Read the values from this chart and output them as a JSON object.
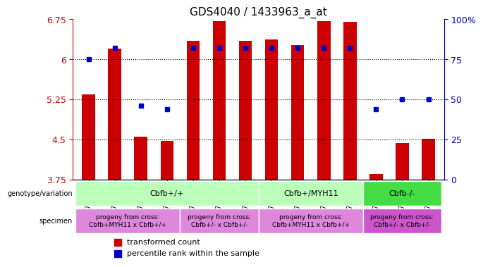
{
  "title": "GDS4040 / 1433963_a_at",
  "samples": [
    "GSM475934",
    "GSM475935",
    "GSM475936",
    "GSM475937",
    "GSM475941",
    "GSM475942",
    "GSM475943",
    "GSM475930",
    "GSM475931",
    "GSM475932",
    "GSM475933",
    "GSM475938",
    "GSM475939",
    "GSM475940"
  ],
  "bar_values": [
    5.35,
    6.2,
    4.55,
    4.48,
    6.35,
    6.71,
    6.35,
    6.37,
    6.27,
    6.71,
    6.7,
    3.85,
    4.43,
    4.52
  ],
  "dot_values": [
    75,
    82,
    46,
    44,
    82,
    82,
    82,
    82,
    82,
    82,
    82,
    44,
    50,
    50
  ],
  "bar_bottom": 3.75,
  "ylim_left": [
    3.75,
    6.75
  ],
  "ylim_right": [
    0,
    100
  ],
  "yticks_left": [
    3.75,
    4.5,
    5.25,
    6.0,
    6.75
  ],
  "yticks_right": [
    0,
    25,
    50,
    75,
    100
  ],
  "ytick_labels_left": [
    "3.75",
    "4.5",
    "5.25",
    "6",
    "6.75"
  ],
  "ytick_labels_right": [
    "0",
    "25",
    "50",
    "75",
    "100%"
  ],
  "bar_color": "#cc0000",
  "dot_color": "#0000cc",
  "genotype_groups": [
    {
      "label": "Cbfb+/+",
      "start": 0,
      "end": 7,
      "color": "#ccffcc"
    },
    {
      "label": "Cbfb+/MYH11",
      "start": 7,
      "end": 11,
      "color": "#ccffcc"
    },
    {
      "label": "Cbfb-/-",
      "start": 11,
      "end": 14,
      "color": "#44cc44"
    }
  ],
  "specimen_groups": [
    {
      "label": "progeny from cross:\nCbfb+MYH11 x Cbfb+/+",
      "start": 0,
      "end": 4,
      "color": "#dd88dd"
    },
    {
      "label": "progeny from cross:\nCbfb+/- x Cbfb+/-",
      "start": 4,
      "end": 7,
      "color": "#dd88dd"
    },
    {
      "label": "progeny from cross:\nCbfb+MYH11 x Cbfb+/+",
      "start": 7,
      "end": 11,
      "color": "#dd88dd"
    },
    {
      "label": "progeny from cross:\nCbfb+/- x Cbfb+/-",
      "start": 11,
      "end": 14,
      "color": "#cc66cc"
    }
  ],
  "legend_bar_label": "transformed count",
  "legend_dot_label": "percentile rank within the sample",
  "grid_color": "black",
  "left_label_color": "#cc0000",
  "right_label_color": "#0000cc"
}
